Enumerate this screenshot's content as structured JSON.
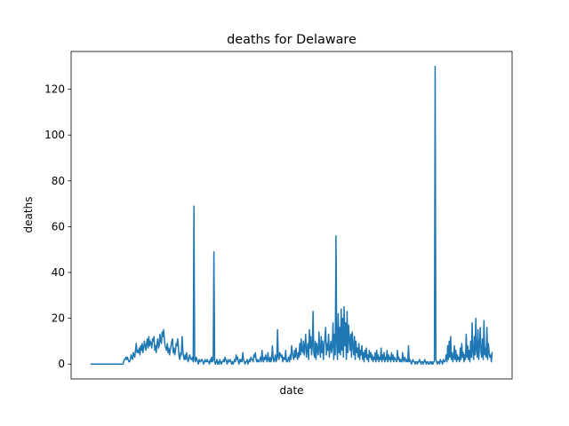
{
  "chart_data": {
    "type": "line",
    "title": "deaths for Delaware",
    "xlabel": "date",
    "ylabel": "deaths",
    "ylim": [
      -6.5,
      136.5
    ],
    "yticks": [
      0,
      20,
      40,
      60,
      80,
      100,
      120
    ],
    "xticks_visible": false,
    "grid": false,
    "series_color": "#1f77b4",
    "series": [
      {
        "values": [
          0,
          0,
          0,
          0,
          0,
          0,
          0,
          0,
          0,
          0,
          0,
          0,
          0,
          0,
          0,
          0,
          0,
          0,
          0,
          0,
          0,
          0,
          0,
          0,
          0,
          0,
          0,
          0,
          0,
          0,
          0,
          0,
          0,
          0,
          0,
          0,
          0,
          0,
          0,
          0,
          0,
          0,
          0,
          0,
          1,
          2,
          2,
          3,
          2,
          3,
          2,
          1,
          1,
          2,
          4,
          3,
          2,
          5,
          4,
          3,
          6,
          9,
          5,
          6,
          5,
          7,
          4,
          8,
          6,
          9,
          5,
          7,
          10,
          8,
          6,
          9,
          11,
          7,
          12,
          8,
          10,
          9,
          7,
          11,
          10,
          12,
          6,
          8,
          5,
          9,
          11,
          7,
          8,
          13,
          10,
          9,
          14,
          12,
          15,
          11,
          8,
          7,
          6,
          9,
          5,
          7,
          4,
          6,
          8,
          10,
          11,
          5,
          7,
          4,
          6,
          9,
          8,
          11,
          7,
          3,
          2,
          5,
          4,
          12,
          6,
          3,
          2,
          4,
          2,
          5,
          3,
          1,
          2,
          4,
          3,
          2,
          2,
          3,
          1,
          69,
          2,
          1,
          3,
          2,
          1,
          0,
          2,
          1,
          1,
          2,
          2,
          1,
          0,
          1,
          2,
          1,
          1,
          2,
          1,
          1,
          0,
          2,
          1,
          3,
          1,
          2,
          49,
          1,
          0,
          1,
          2,
          0,
          1,
          0,
          2,
          1,
          0,
          1,
          1,
          2,
          1,
          3,
          2,
          1,
          0,
          2,
          1,
          1,
          2,
          1,
          0,
          1,
          0,
          1,
          2,
          1,
          4,
          2,
          3,
          1,
          0,
          2,
          1,
          2,
          1,
          5,
          2,
          1,
          0,
          1,
          1,
          2,
          0,
          1,
          2,
          1,
          3,
          2,
          2,
          1,
          4,
          3,
          5,
          2,
          1,
          2,
          1,
          1,
          2,
          3,
          1,
          6,
          2,
          1,
          3,
          2,
          4,
          2,
          1,
          5,
          2,
          1,
          3,
          1,
          2,
          8,
          3,
          1,
          2,
          4,
          1,
          2,
          15,
          3,
          2,
          5,
          4,
          3,
          4,
          1,
          3,
          2,
          2,
          6,
          1,
          1,
          2,
          3,
          1,
          4,
          2,
          8,
          5,
          3,
          2,
          6,
          3,
          7,
          4,
          2,
          5,
          3,
          9,
          4,
          11,
          6,
          5,
          10,
          4,
          8,
          13,
          3,
          6,
          9,
          2,
          15,
          7,
          12,
          4,
          8,
          23,
          5,
          3,
          10,
          2,
          9,
          6,
          4,
          14,
          7,
          3,
          12,
          5,
          10,
          2,
          8,
          11,
          16,
          4,
          9,
          6,
          13,
          3,
          7,
          10,
          5,
          8,
          18,
          2,
          13,
          4,
          56,
          9,
          2,
          22,
          5,
          16,
          4,
          24,
          6,
          20,
          3,
          25,
          8,
          18,
          2,
          23,
          5,
          17,
          11,
          6,
          13,
          3,
          14,
          8,
          4,
          12,
          2,
          10,
          5,
          7,
          3,
          9,
          2,
          6,
          4,
          8,
          2,
          5,
          1,
          6,
          3,
          7,
          2,
          4,
          1,
          6,
          3,
          5,
          2,
          4,
          1,
          3,
          2,
          5,
          1,
          6,
          2,
          4,
          1,
          3,
          2,
          7,
          1,
          4,
          2,
          5,
          1,
          3,
          2,
          6,
          1,
          4,
          2,
          3,
          1,
          5,
          2,
          4,
          1,
          3,
          2,
          2,
          1,
          6,
          2,
          3,
          1,
          2,
          1,
          1,
          5,
          2,
          1,
          3,
          2,
          1,
          2,
          1,
          8,
          1,
          2,
          1,
          0,
          1,
          2,
          1,
          1,
          0,
          1,
          1,
          0,
          1,
          1,
          2,
          1,
          0,
          1,
          1,
          0,
          1,
          2,
          1,
          0,
          1,
          1,
          0,
          0,
          1,
          1,
          0,
          1,
          0,
          1,
          1,
          130,
          2,
          1,
          0,
          1,
          1,
          0,
          2,
          1,
          1,
          0,
          2,
          1,
          1,
          2,
          4,
          1,
          8,
          2,
          10,
          3,
          12,
          2,
          5,
          1,
          3,
          8,
          2,
          6,
          1,
          4,
          2,
          3,
          1,
          7,
          2,
          9,
          3,
          5,
          1,
          4,
          2,
          13,
          3,
          8,
          2,
          6,
          1,
          10,
          3,
          18,
          5,
          2,
          12,
          4,
          20,
          6,
          3,
          15,
          2,
          8,
          16,
          5,
          3,
          11,
          2,
          19,
          4,
          7,
          3,
          16,
          2,
          9,
          5,
          3,
          4,
          1,
          5
        ]
      }
    ]
  }
}
